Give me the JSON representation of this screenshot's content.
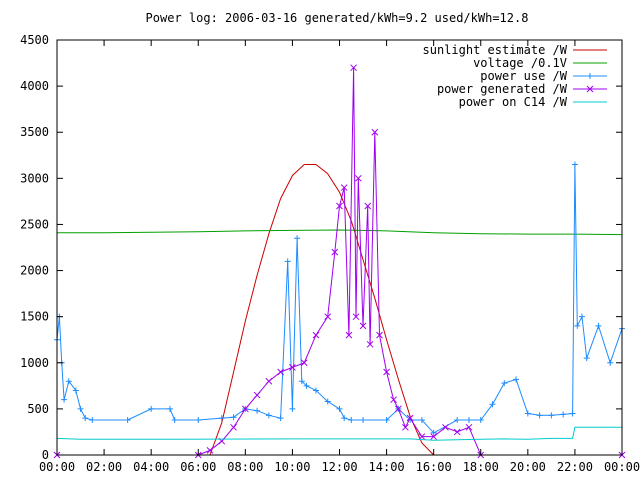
{
  "chart_data": {
    "type": "line",
    "title": "Power log: 2006-03-16 generated/kWh=9.2 used/kWh=12.8",
    "xlabel": "",
    "ylabel": "",
    "x_ticks": [
      "00:00",
      "02:00",
      "04:00",
      "06:00",
      "08:00",
      "10:00",
      "12:00",
      "14:00",
      "16:00",
      "18:00",
      "20:00",
      "22:00",
      "00:00"
    ],
    "y_ticks": [
      0,
      500,
      1000,
      1500,
      2000,
      2500,
      3000,
      3500,
      4000,
      4500
    ],
    "xlim": [
      0,
      24
    ],
    "ylim": [
      0,
      4500
    ],
    "grid": false,
    "legend_position": "top-right",
    "colors": {
      "sunlight": "#cc0000",
      "voltage": "#00a000",
      "power_use": "#1e8cff",
      "power_generated": "#a000ee",
      "c14": "#00cccc"
    },
    "series": [
      {
        "name": "sunlight estimate /W",
        "key": "sunlight",
        "style": "line",
        "x": [
          6.5,
          7.0,
          7.5,
          8.0,
          8.5,
          9.0,
          9.5,
          10.0,
          10.5,
          11.0,
          11.5,
          12.0,
          12.5,
          13.0,
          13.5,
          14.0,
          14.5,
          15.0,
          15.5,
          16.0
        ],
        "y": [
          0,
          350,
          900,
          1450,
          1950,
          2400,
          2780,
          3030,
          3150,
          3150,
          3050,
          2850,
          2540,
          2120,
          1700,
          1250,
          820,
          420,
          130,
          0
        ]
      },
      {
        "name": "voltage /0.1V",
        "key": "voltage",
        "style": "line",
        "x": [
          0,
          2,
          4,
          6,
          8,
          10,
          12,
          14,
          16,
          18,
          20,
          22,
          24
        ],
        "y": [
          2410,
          2410,
          2415,
          2420,
          2430,
          2435,
          2440,
          2430,
          2410,
          2400,
          2395,
          2395,
          2390
        ]
      },
      {
        "name": "power use /W",
        "key": "power_use",
        "style": "linepoints",
        "x": [
          0,
          0.1,
          0.2,
          0.3,
          0.5,
          0.8,
          1.0,
          1.2,
          1.5,
          3.0,
          4.0,
          4.8,
          5.0,
          6.0,
          7.0,
          7.5,
          8.0,
          8.5,
          9.0,
          9.5,
          9.8,
          10.0,
          10.2,
          10.4,
          10.6,
          11.0,
          11.5,
          12.0,
          12.2,
          12.5,
          13.0,
          14.0,
          14.5,
          15.0,
          15.5,
          16.0,
          17.0,
          17.5,
          18.0,
          18.5,
          19.0,
          19.5,
          20.0,
          20.5,
          21.0,
          21.5,
          21.9,
          22.0,
          22.1,
          22.3,
          22.5,
          23.0,
          23.5,
          24.0
        ],
        "y": [
          1250,
          1500,
          1000,
          600,
          800,
          700,
          500,
          400,
          380,
          380,
          500,
          500,
          380,
          380,
          400,
          410,
          500,
          480,
          430,
          400,
          2100,
          500,
          2350,
          800,
          750,
          700,
          580,
          500,
          400,
          380,
          380,
          380,
          500,
          380,
          380,
          240,
          380,
          380,
          380,
          550,
          780,
          820,
          450,
          430,
          430,
          440,
          450,
          3150,
          1400,
          1500,
          1050,
          1400,
          1000,
          1370
        ]
      },
      {
        "name": "power generated /W",
        "key": "power_generated",
        "style": "linepoints",
        "x": [
          0,
          6.0,
          6.5,
          7.0,
          7.5,
          8.0,
          8.5,
          9.0,
          9.5,
          10.0,
          10.5,
          11.0,
          11.5,
          11.8,
          12.0,
          12.2,
          12.4,
          12.6,
          12.7,
          12.8,
          13.0,
          13.2,
          13.3,
          13.5,
          13.7,
          14.0,
          14.3,
          14.5,
          14.8,
          15.0,
          15.5,
          16.0,
          16.5,
          17.0,
          17.5,
          18.0,
          24.0
        ],
        "y": [
          0,
          0,
          50,
          150,
          300,
          500,
          650,
          800,
          900,
          950,
          1000,
          1300,
          1500,
          2200,
          2700,
          2900,
          1300,
          4200,
          1500,
          3000,
          1400,
          2700,
          1200,
          3500,
          1300,
          900,
          600,
          500,
          300,
          400,
          200,
          200,
          300,
          250,
          300,
          0,
          0
        ]
      },
      {
        "name": "power on C14 /W",
        "key": "c14",
        "style": "line",
        "x": [
          0,
          1,
          5,
          10,
          15,
          16,
          18,
          19,
          20,
          21,
          21.9,
          22,
          23,
          24
        ],
        "y": [
          180,
          170,
          170,
          175,
          175,
          160,
          170,
          175,
          170,
          180,
          180,
          300,
          300,
          300
        ]
      }
    ]
  }
}
